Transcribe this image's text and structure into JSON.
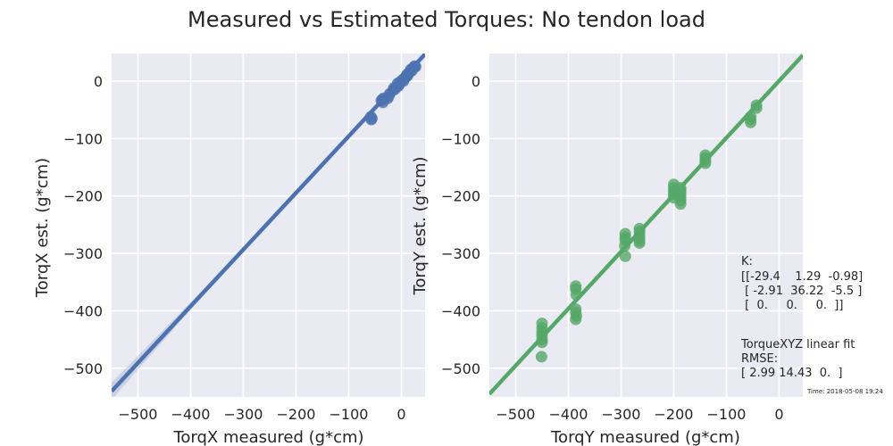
{
  "figure_title": "Measured vs Estimated Torques: No tendon load",
  "timestamp": "Time: 2018-05-08 19:24",
  "annotation": {
    "k_lines": [
      "K:",
      "[[-29.4    1.29  -0.98]",
      " [ -2.91  36.22  -5.5 ]",
      " [  0.     0.     0.  ]]"
    ],
    "fit_lines": [
      "TorqueXYZ linear fit",
      "RMSE:",
      "[ 2.99 14.43  0.  ]"
    ]
  },
  "colors": {
    "background": "#eaeaf2",
    "grid": "#ffffff",
    "series_x": "#4c72b0",
    "series_y": "#55a868"
  },
  "chart_data": [
    {
      "type": "scatter",
      "xlabel": "TorqX measured (g*cm)",
      "ylabel": "TorqX est. (g*cm)",
      "xlim": [
        -550,
        45
      ],
      "ylim": [
        -550,
        48
      ],
      "xticks": [
        -500,
        -400,
        -300,
        -200,
        -100,
        0
      ],
      "yticks": [
        0,
        -100,
        -200,
        -300,
        -400,
        -500
      ],
      "xtick_labels": [
        "−500",
        "−400",
        "−300",
        "−200",
        "−100",
        "0"
      ],
      "ytick_labels": [
        "0",
        "−100",
        "−200",
        "−300",
        "−400",
        "−500"
      ],
      "grid": true,
      "color": "#4c72b0",
      "points": [
        [
          -58,
          -62
        ],
        [
          -57,
          -67
        ],
        [
          -56,
          -65
        ],
        [
          -38,
          -34
        ],
        [
          -36,
          -32
        ],
        [
          -35,
          -37
        ],
        [
          -34,
          -30
        ],
        [
          -26,
          -30
        ],
        [
          -24,
          -26
        ],
        [
          -22,
          -22
        ],
        [
          -16,
          -16
        ],
        [
          -14,
          -12
        ],
        [
          -12,
          -14
        ],
        [
          -7,
          -4
        ],
        [
          -6,
          -9
        ],
        [
          -4,
          -6
        ],
        [
          -3,
          -2
        ],
        [
          2,
          2
        ],
        [
          4,
          0
        ],
        [
          5,
          4
        ],
        [
          7,
          6
        ],
        [
          10,
          8
        ],
        [
          11,
          12
        ],
        [
          12,
          10
        ],
        [
          16,
          16
        ],
        [
          18,
          20
        ],
        [
          20,
          18
        ],
        [
          21,
          22
        ],
        [
          24,
          24
        ],
        [
          25,
          26
        ],
        [
          27,
          25
        ]
      ],
      "fit_line": {
        "x": [
          -550,
          45
        ],
        "y": [
          -540,
          47
        ]
      },
      "ci": {
        "x": [
          -550,
          -400,
          -300,
          -200,
          -100,
          45
        ],
        "lower": [
          -555,
          -398,
          -298,
          -198,
          -99,
          46
        ],
        "upper": [
          -525,
          -385,
          -292,
          -195,
          -98,
          48
        ]
      }
    },
    {
      "type": "scatter",
      "xlabel": "TorqY measured (g*cm)",
      "ylabel": "TorqY est. (g*cm)",
      "xlim": [
        -550,
        45
      ],
      "ylim": [
        -550,
        48
      ],
      "xticks": [
        -500,
        -400,
        -300,
        -200,
        -100,
        0
      ],
      "yticks": [
        0,
        -100,
        -200,
        -300,
        -400,
        -500
      ],
      "xtick_labels": [
        "−500",
        "−400",
        "−300",
        "−200",
        "−100",
        "0"
      ],
      "ytick_labels": [
        "0",
        "−100",
        "−200",
        "−300",
        "−400",
        "−500"
      ],
      "grid": true,
      "color": "#55a868",
      "points": [
        [
          -450,
          -422
        ],
        [
          -450,
          -430
        ],
        [
          -450,
          -437
        ],
        [
          -450,
          -443
        ],
        [
          -450,
          -450
        ],
        [
          -450,
          -455
        ],
        [
          -451,
          -480
        ],
        [
          -386,
          -357
        ],
        [
          -386,
          -362
        ],
        [
          -385,
          -372
        ],
        [
          -386,
          -397
        ],
        [
          -386,
          -403
        ],
        [
          -385,
          -409
        ],
        [
          -386,
          -415
        ],
        [
          -292,
          -266
        ],
        [
          -292,
          -272
        ],
        [
          -292,
          -277
        ],
        [
          -293,
          -287
        ],
        [
          -292,
          -305
        ],
        [
          -265,
          -257
        ],
        [
          -265,
          -262
        ],
        [
          -265,
          -268
        ],
        [
          -265,
          -273
        ],
        [
          -265,
          -278
        ],
        [
          -265,
          -282
        ],
        [
          -200,
          -180
        ],
        [
          -200,
          -186
        ],
        [
          -200,
          -192
        ],
        [
          -200,
          -197
        ],
        [
          -200,
          -203
        ],
        [
          -187,
          -186
        ],
        [
          -187,
          -191
        ],
        [
          -187,
          -196
        ],
        [
          -187,
          -202
        ],
        [
          -187,
          -208
        ],
        [
          -187,
          -214
        ],
        [
          -140,
          -129
        ],
        [
          -140,
          -134
        ],
        [
          -140,
          -139
        ],
        [
          -140,
          -143
        ],
        [
          -54,
          -62
        ],
        [
          -54,
          -67
        ],
        [
          -54,
          -72
        ],
        [
          -43,
          -42
        ],
        [
          -43,
          -47
        ]
      ],
      "fit_line": {
        "x": [
          -550,
          45
        ],
        "y": [
          -545,
          45
        ]
      }
    }
  ]
}
